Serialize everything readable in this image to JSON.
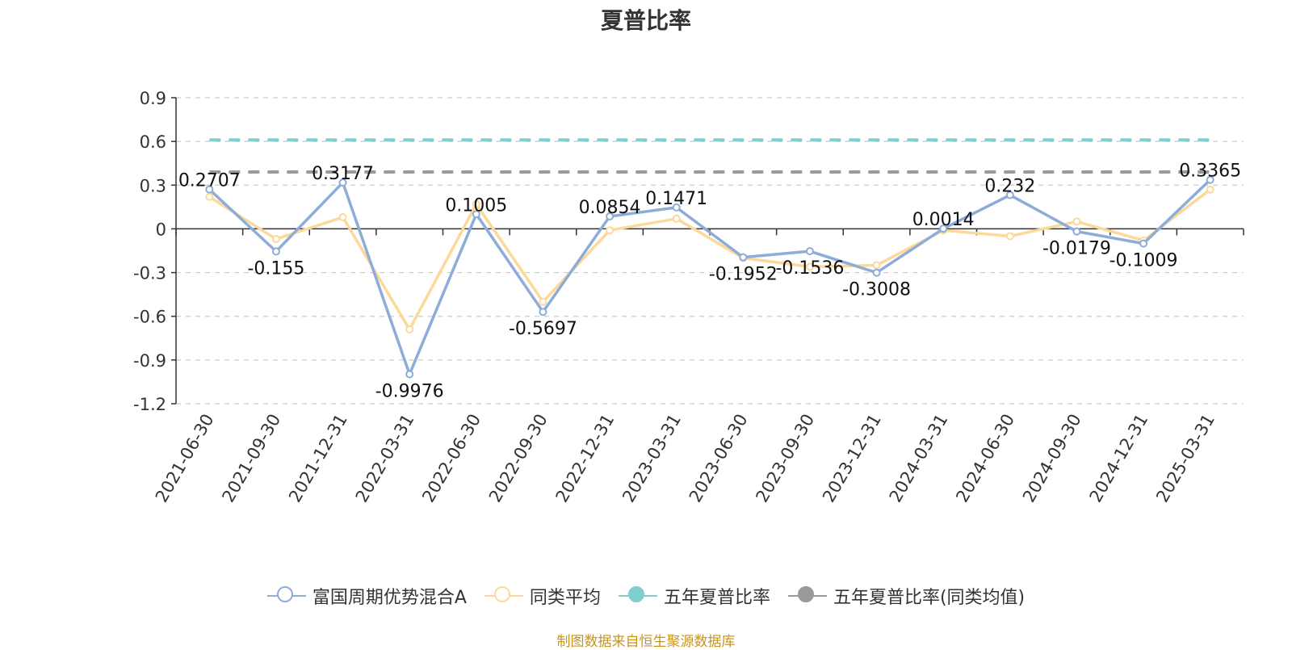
{
  "title": "夏普比率",
  "source_note": "制图数据来自恒生聚源数据库",
  "colors": {
    "fund": "#8eacd8",
    "peer": "#fcd99a",
    "five_year": "#7fcfcf",
    "five_year_peer": "#999999"
  },
  "legend": [
    {
      "label": "富国周期优势混合A",
      "style": "hollow"
    },
    {
      "label": "同类平均",
      "style": "hollow"
    },
    {
      "label": "五年夏普比率",
      "style": "filled"
    },
    {
      "label": "五年夏普比率(同类均值)",
      "style": "filled"
    }
  ],
  "chart_data": {
    "type": "line",
    "title": "夏普比率",
    "categories": [
      "2021-06-30",
      "2021-09-30",
      "2021-12-31",
      "2022-03-31",
      "2022-06-30",
      "2022-09-30",
      "2022-12-31",
      "2023-03-31",
      "2023-06-30",
      "2023-09-30",
      "2023-12-31",
      "2024-03-31",
      "2024-06-30",
      "2024-09-30",
      "2024-12-31",
      "2025-03-31"
    ],
    "ylim": [
      -1.2,
      0.9
    ],
    "yticks": [
      0.9,
      0.6,
      0.3,
      0,
      -0.3,
      -0.6,
      -0.9,
      -1.2
    ],
    "ytick_labels": [
      "0.9",
      "0.6",
      "0.3",
      "0",
      "-0.3",
      "-0.6",
      "-0.9",
      "-1.2"
    ],
    "grid": true,
    "legend_position": "bottom",
    "series": [
      {
        "name": "富国周期优势混合A",
        "values": [
          0.2707,
          -0.155,
          0.3177,
          -0.9976,
          0.1005,
          -0.5697,
          0.0854,
          0.1471,
          -0.1952,
          -0.1536,
          -0.3008,
          0.0014,
          0.232,
          -0.0179,
          -0.1009,
          0.3365
        ],
        "labels": [
          "0.2707",
          "-0.155",
          "0.3177",
          "-0.9976",
          "0.1005",
          "-0.5697",
          "0.0854",
          "0.1471",
          "-0.1952",
          "-0.1536",
          "-0.3008",
          "0.0014",
          "0.232",
          "-0.0179",
          "-0.1009",
          "0.3365"
        ]
      },
      {
        "name": "同类平均",
        "values": [
          0.22,
          -0.07,
          0.08,
          -0.69,
          0.17,
          -0.5,
          -0.01,
          0.07,
          -0.2,
          -0.26,
          -0.25,
          -0.01,
          -0.05,
          0.05,
          -0.08,
          0.27
        ]
      },
      {
        "name": "五年夏普比率",
        "values": [
          0.61,
          0.61,
          0.61,
          0.61,
          0.61,
          0.61,
          0.61,
          0.61,
          0.61,
          0.61,
          0.61,
          0.61,
          0.61,
          0.61,
          0.61,
          0.61
        ]
      },
      {
        "name": "五年夏普比率(同类均值)",
        "values": [
          0.39,
          0.39,
          0.39,
          0.39,
          0.39,
          0.39,
          0.39,
          0.39,
          0.39,
          0.39,
          0.39,
          0.39,
          0.39,
          0.39,
          0.39,
          0.39
        ]
      }
    ]
  }
}
